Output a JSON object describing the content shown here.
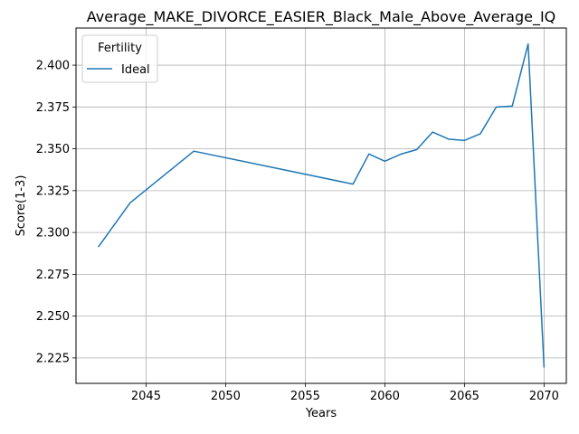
{
  "chart_data": {
    "type": "line",
    "title": "Average_MAKE_DIVORCE_EASIER_Black_Male_Above_Average_IQ",
    "xlabel": "Years",
    "ylabel": "Score(1-3)",
    "xlim": [
      2040.6,
      2071.4
    ],
    "ylim": [
      2.2098,
      2.4222
    ],
    "x_ticks": [
      2045,
      2050,
      2055,
      2060,
      2065,
      2070
    ],
    "y_ticks": [
      2.225,
      2.25,
      2.275,
      2.3,
      2.325,
      2.35,
      2.375,
      2.4
    ],
    "grid": true,
    "legend": {
      "title": "Fertility",
      "placement": "top-left"
    },
    "series": [
      {
        "name": "Ideal",
        "color": "#1f77b4",
        "x": [
          2042,
          2044,
          2048,
          2058,
          2059,
          2060,
          2061,
          2062,
          2063,
          2064,
          2065,
          2066,
          2067,
          2068,
          2069,
          2070
        ],
        "y": [
          2.2913,
          2.3177,
          2.3486,
          2.3289,
          2.3469,
          2.3426,
          2.3468,
          2.3495,
          2.36,
          2.3558,
          2.355,
          2.359,
          2.375,
          2.3755,
          2.4127,
          2.2193
        ]
      }
    ]
  }
}
